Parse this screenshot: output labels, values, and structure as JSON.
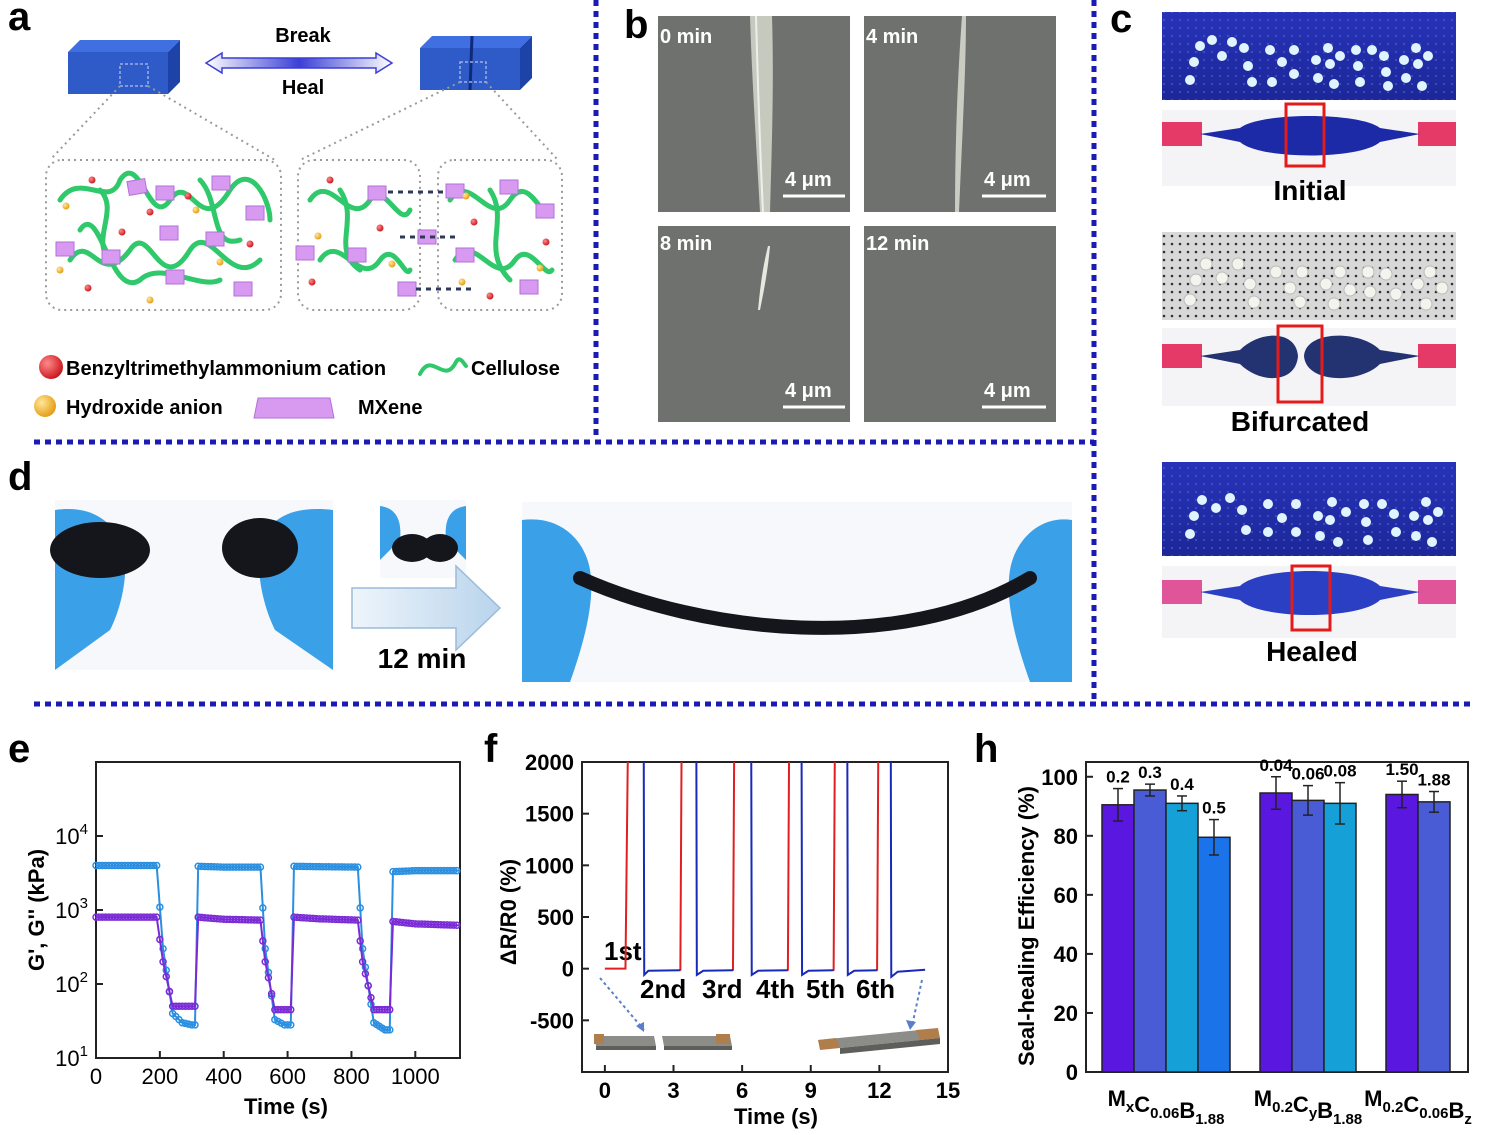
{
  "panels": {
    "a": {
      "label": "a",
      "arrow_top": "Break",
      "arrow_bottom": "Heal",
      "legend": [
        {
          "text": "Benzyltrimethylammonium cation",
          "icon": "red-sphere-icon",
          "color": "#d8232a"
        },
        {
          "text": "Cellulose",
          "icon": "green-wave-icon",
          "color": "#2fc86b"
        },
        {
          "text": "Hydroxide anion",
          "icon": "yellow-sphere-icon",
          "color": "#f5b625"
        },
        {
          "text": "MXene",
          "icon": "purple-sheet-icon",
          "color": "#d79af0"
        }
      ]
    },
    "b": {
      "label": "b",
      "images": [
        {
          "time": "0 min",
          "scale": "4 μm"
        },
        {
          "time": "4 min",
          "scale": "4 μm"
        },
        {
          "time": "8 min",
          "scale": "4 μm"
        },
        {
          "time": "12 min",
          "scale": "4 μm"
        }
      ]
    },
    "c": {
      "label": "c",
      "states": [
        "Initial",
        "Bifurcated",
        "Healed"
      ]
    },
    "d": {
      "label": "d",
      "arrow_text": "12 min"
    },
    "e": {
      "label": "e"
    },
    "f": {
      "label": "f"
    },
    "h": {
      "label": "h"
    }
  },
  "colors": {
    "divider": "#1a1ab4",
    "hydrogel_blue": "#2f5bc9",
    "glove_blue": "#3aa0e8",
    "led_blue": "#1f2fb0",
    "micrograph_gray": "#6f716f"
  },
  "chart_data": [
    {
      "id": "e",
      "type": "line",
      "xlabel": "Time (s)",
      "ylabel": "G', G'' (kPa)",
      "xlim": [
        0,
        1140
      ],
      "xticks": [
        0,
        200,
        400,
        600,
        800,
        1000
      ],
      "ylog": true,
      "ylim": [
        10,
        100000
      ],
      "ytick_labels": [
        "10^1",
        "10^2",
        "10^3",
        "10^4"
      ],
      "series": [
        {
          "color": "#2a8fe0",
          "x": [
            0,
            190,
            210,
            240,
            270,
            300,
            310,
            320,
            400,
            515,
            530,
            560,
            590,
            610,
            620,
            700,
            820,
            835,
            870,
            905,
            920,
            930,
            1000,
            1140
          ],
          "y": [
            4000,
            4000,
            300,
            40,
            30,
            28,
            28,
            3900,
            3800,
            3800,
            300,
            33,
            28,
            28,
            3900,
            3850,
            3800,
            300,
            30,
            24,
            24,
            3300,
            3400,
            3400
          ]
        },
        {
          "color": "#7a2bd6",
          "x": [
            0,
            190,
            210,
            240,
            270,
            300,
            310,
            320,
            400,
            515,
            530,
            560,
            590,
            610,
            620,
            700,
            820,
            835,
            870,
            905,
            920,
            930,
            1000,
            1140
          ],
          "y": [
            800,
            800,
            200,
            50,
            50,
            50,
            50,
            800,
            750,
            730,
            200,
            45,
            45,
            45,
            800,
            760,
            730,
            200,
            45,
            45,
            45,
            700,
            650,
            620
          ]
        }
      ]
    },
    {
      "id": "f",
      "type": "line",
      "xlabel": "Time (s)",
      "ylabel": "ΔR/R0 (%)",
      "xlim": [
        -1,
        15
      ],
      "ylim": [
        -1000,
        2000
      ],
      "xticks": [
        0,
        3,
        6,
        9,
        12,
        15
      ],
      "yticks": [
        -500,
        0,
        500,
        1000,
        1500,
        2000
      ],
      "annotations": [
        "1st",
        "2nd",
        "3rd",
        "4th",
        "5th",
        "6th"
      ],
      "series": [
        {
          "color": "#e02020",
          "segments": [
            {
              "x": [
                0,
                0.9,
                1.0
              ],
              "y": [
                0,
                0,
                2000
              ]
            },
            {
              "x": [
                3.3,
                3.35
              ],
              "y": [
                -20,
                2000
              ]
            },
            {
              "x": [
                5.6,
                5.65
              ],
              "y": [
                -20,
                2000
              ]
            },
            {
              "x": [
                8.0,
                8.05
              ],
              "y": [
                -20,
                2000
              ]
            },
            {
              "x": [
                10.0,
                10.05
              ],
              "y": [
                -20,
                2000
              ]
            },
            {
              "x": [
                11.9,
                11.95
              ],
              "y": [
                -20,
                2000
              ]
            }
          ]
        },
        {
          "color": "#1a2ab8",
          "segments": [
            {
              "x": [
                1.7,
                1.72,
                1.9,
                3.3
              ],
              "y": [
                2000,
                -60,
                -20,
                -15
              ]
            },
            {
              "x": [
                4.0,
                4.02,
                4.3,
                5.6
              ],
              "y": [
                2000,
                -60,
                -20,
                -15
              ]
            },
            {
              "x": [
                6.4,
                6.42,
                6.7,
                8.0
              ],
              "y": [
                2000,
                -60,
                -20,
                -15
              ]
            },
            {
              "x": [
                8.6,
                8.62,
                8.9,
                10.0
              ],
              "y": [
                2000,
                -60,
                -20,
                -15
              ]
            },
            {
              "x": [
                10.6,
                10.62,
                10.9,
                11.9
              ],
              "y": [
                2000,
                -60,
                -20,
                -15
              ]
            },
            {
              "x": [
                12.5,
                12.52,
                12.8,
                14.0
              ],
              "y": [
                2000,
                -80,
                -30,
                -10
              ]
            }
          ]
        }
      ]
    },
    {
      "id": "h",
      "type": "bar",
      "ylabel": "Seal-healing Efficiency (%)",
      "ylim": [
        0,
        105
      ],
      "yticks": [
        0,
        20,
        40,
        60,
        80,
        100
      ],
      "groups": [
        {
          "label": "MxC0.06B1.88",
          "bars": [
            {
              "label": "0.2",
              "value": 90.5,
              "err": 5.5,
              "color": "#5a17e0"
            },
            {
              "label": "0.3",
              "value": 95.5,
              "err": 2.0,
              "color": "#4a5bd6"
            },
            {
              "label": "0.4",
              "value": 91.0,
              "err": 2.5,
              "color": "#15a0d8"
            },
            {
              "label": "0.5",
              "value": 79.5,
              "err": 6.0,
              "color": "#1a73e8"
            }
          ]
        },
        {
          "label": "M0.2CyB1.88",
          "bars": [
            {
              "label": "0.04",
              "value": 94.5,
              "err": 5.5,
              "color": "#5a17e0"
            },
            {
              "label": "0.06",
              "value": 92.0,
              "err": 5.0,
              "color": "#4a5bd6"
            },
            {
              "label": "0.08",
              "value": 91.0,
              "err": 7.0,
              "color": "#15a0d8"
            }
          ]
        },
        {
          "label": "M0.2C0.06Bz",
          "bars": [
            {
              "label": "1.50",
              "value": 94.0,
              "err": 4.5,
              "color": "#5a17e0"
            },
            {
              "label": "1.88",
              "value": 91.5,
              "err": 3.5,
              "color": "#4a5bd6"
            }
          ]
        }
      ]
    }
  ]
}
